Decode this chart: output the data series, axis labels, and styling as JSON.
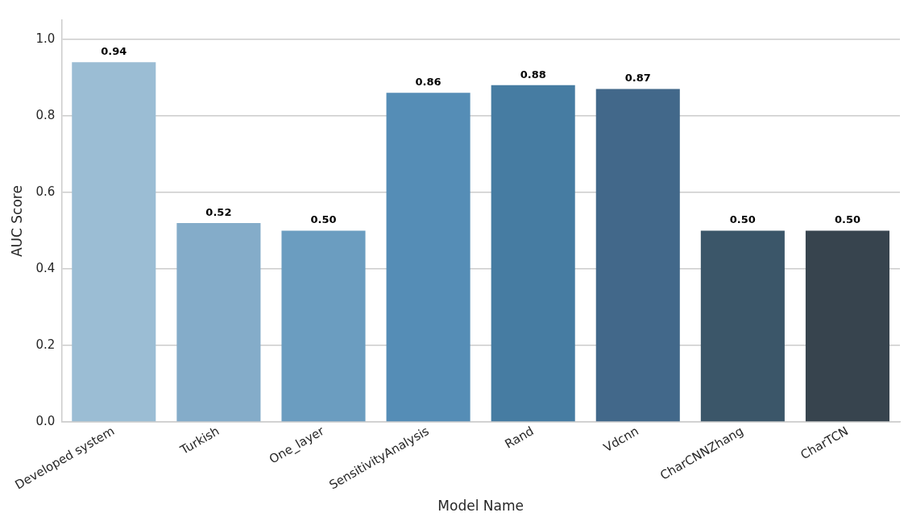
{
  "chart_data": {
    "type": "bar",
    "xlabel": "Model Name",
    "ylabel": "AUC Score",
    "categories": [
      "Developed system",
      "Turkish",
      "One_layer",
      "SensitivityAnalysis",
      "Rand",
      "Vdcnn",
      "CharCNNZhang",
      "CharTCN"
    ],
    "values": [
      0.94,
      0.52,
      0.5,
      0.86,
      0.88,
      0.87,
      0.5,
      0.5
    ],
    "value_labels": [
      "0.94",
      "0.52",
      "0.50",
      "0.86",
      "0.88",
      "0.87",
      "0.50",
      "0.50"
    ],
    "colors": [
      "#9bbdd4",
      "#84acc9",
      "#6b9dc0",
      "#558db6",
      "#467ca2",
      "#42688a",
      "#3b5669",
      "#37444e"
    ],
    "ylim": [
      0,
      1.05
    ],
    "yticks": [
      {
        "value": 0,
        "label": "0.0"
      },
      {
        "value": 0.2,
        "label": "0.2"
      },
      {
        "value": 0.4,
        "label": "0.4"
      },
      {
        "value": 0.6,
        "label": "0.6"
      },
      {
        "value": 0.8,
        "label": "0.8"
      },
      {
        "value": 1,
        "label": "1.0"
      }
    ],
    "grid": "y"
  }
}
